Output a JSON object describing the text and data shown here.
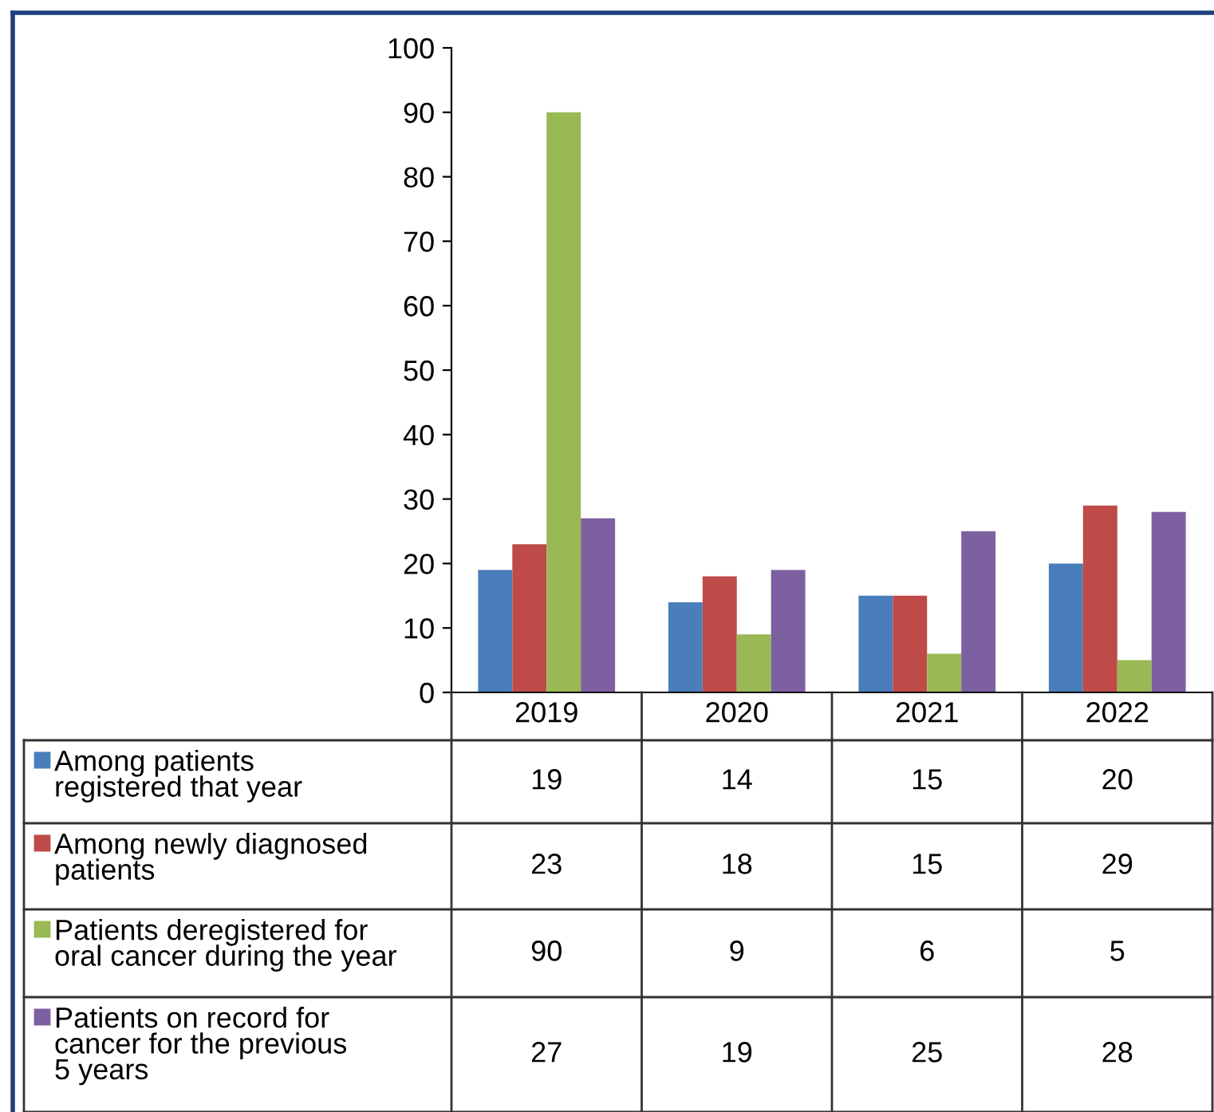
{
  "chart_data": {
    "type": "bar",
    "categories": [
      "2019",
      "2020",
      "2021",
      "2022"
    ],
    "series": [
      {
        "name": "Among patients\nregistered that year",
        "color": "#4a7ebb",
        "values": [
          19,
          14,
          15,
          20
        ]
      },
      {
        "name": "Among newly diagnosed\npatients",
        "color": "#be4b48",
        "values": [
          23,
          18,
          15,
          29
        ]
      },
      {
        "name": "Patients deregistered for\noral cancer during the year",
        "color": "#98b954",
        "values": [
          90,
          9,
          6,
          5
        ]
      },
      {
        "name": "Patients on record for\ncancer for the previous\n5 years",
        "color": "#7d60a0",
        "values": [
          27,
          19,
          25,
          28
        ]
      }
    ],
    "ylim": [
      0,
      100
    ],
    "yticks": [
      0,
      10,
      20,
      30,
      40,
      50,
      60,
      70,
      80,
      90,
      100
    ],
    "grid": false,
    "legend": "bottom",
    "data_labels": true
  }
}
